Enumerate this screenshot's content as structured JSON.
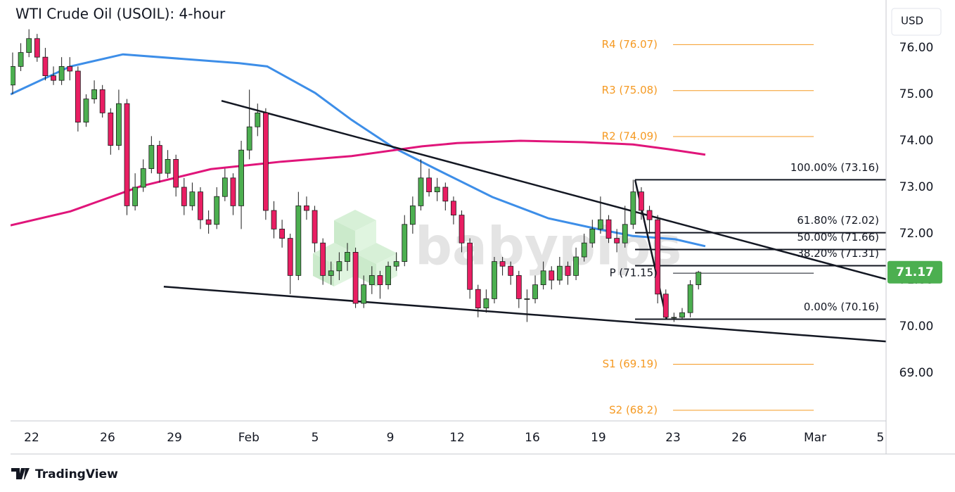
{
  "chart_data": {
    "type": "candlestick",
    "title": "WTI Crude Oil (USOIL): 4-hour",
    "currency": "USD",
    "watermark": "babypips",
    "brand": "TradingView",
    "xlim": [
      -1.11,
      45.0
    ],
    "ylim": [
      67.97,
      77.03
    ],
    "xticks": [
      {
        "value": 0,
        "label": "22"
      },
      {
        "value": 4,
        "label": "26"
      },
      {
        "value": 7.52,
        "label": "29"
      },
      {
        "value": 11.44,
        "label": "Feb"
      },
      {
        "value": 14.93,
        "label": "5"
      },
      {
        "value": 18.89,
        "label": "9"
      },
      {
        "value": 22.41,
        "label": "12"
      },
      {
        "value": 26.37,
        "label": "16"
      },
      {
        "value": 29.85,
        "label": "19"
      },
      {
        "value": 33.78,
        "label": "23"
      },
      {
        "value": 37.26,
        "label": "26"
      },
      {
        "value": 41.26,
        "label": "Mar"
      },
      {
        "value": 44.7,
        "label": "5"
      }
    ],
    "yticks": [
      {
        "value": 69,
        "label": "69.00"
      },
      {
        "value": 70,
        "label": "70.00"
      },
      {
        "value": 71,
        "label": "71.00"
      },
      {
        "value": 72,
        "label": "72.00"
      },
      {
        "value": 73,
        "label": "73.00"
      },
      {
        "value": 74,
        "label": "74.00"
      },
      {
        "value": 75,
        "label": "75.00"
      },
      {
        "value": 76,
        "label": "76.00"
      }
    ],
    "up_color": "#4caf50",
    "down_color": "#e91e63",
    "x": [
      -1,
      -0.57,
      -0.14,
      0.29,
      0.72,
      1.15,
      1.58,
      2.01,
      2.44,
      2.87,
      3.3,
      3.73,
      4.16,
      4.59,
      5.02,
      5.45,
      5.88,
      6.31,
      6.74,
      7.17,
      7.6,
      8.03,
      8.46,
      8.89,
      9.32,
      9.75,
      10.18,
      10.61,
      11.04,
      11.47,
      11.9,
      12.33,
      12.76,
      13.19,
      13.62,
      14.05,
      14.48,
      14.91,
      15.34,
      15.77,
      16.2,
      16.63,
      17.06,
      17.49,
      17.92,
      18.35,
      18.78,
      19.21,
      19.64,
      20.07,
      20.5,
      20.93,
      21.36,
      21.79,
      22.22,
      22.65,
      23.08,
      23.51,
      23.94,
      24.37,
      24.8,
      25.23,
      25.66,
      26.09,
      26.52,
      26.95,
      27.38,
      27.81,
      28.24,
      28.67,
      29.1,
      29.53,
      29.96,
      30.39,
      30.82,
      31.25,
      31.68,
      32.11,
      32.54,
      32.97,
      33.4,
      33.83,
      34.26,
      34.69,
      35.12
    ],
    "open": [
      75.2,
      75.6,
      75.9,
      76.2,
      75.8,
      75.4,
      75.3,
      75.6,
      75.5,
      74.4,
      74.9,
      75.1,
      74.6,
      73.9,
      74.8,
      72.6,
      73.0,
      73.4,
      73.9,
      73.3,
      73.6,
      73.0,
      72.6,
      72.9,
      72.3,
      72.2,
      72.8,
      73.2,
      72.6,
      73.8,
      74.3,
      74.6,
      72.5,
      72.1,
      71.9,
      71.1,
      72.6,
      72.5,
      71.8,
      71.1,
      71.2,
      71.4,
      71.6,
      70.5,
      70.9,
      71.1,
      70.9,
      71.3,
      71.4,
      72.2,
      72.6,
      73.2,
      72.9,
      73.0,
      72.7,
      72.4,
      71.8,
      70.8,
      70.4,
      70.6,
      71.4,
      71.3,
      71.1,
      70.6,
      70.6,
      70.9,
      71.2,
      71.0,
      71.3,
      71.1,
      71.5,
      71.8,
      72.1,
      72.3,
      71.9,
      71.8,
      72.2,
      72.9,
      72.5,
      72.3,
      70.7,
      70.2,
      70.2,
      70.3,
      70.9
    ],
    "high": [
      75.9,
      76.1,
      76.4,
      76.3,
      76.0,
      75.6,
      75.8,
      75.8,
      75.6,
      75.0,
      75.3,
      75.2,
      74.7,
      75.1,
      74.9,
      73.3,
      73.6,
      74.1,
      74.0,
      73.8,
      73.7,
      73.2,
      73.1,
      73.0,
      72.5,
      73.0,
      73.4,
      73.3,
      74.0,
      75.1,
      74.8,
      74.7,
      72.7,
      72.3,
      72.0,
      72.9,
      72.8,
      72.6,
      71.9,
      71.4,
      71.6,
      71.8,
      71.7,
      71.1,
      71.3,
      71.2,
      71.4,
      71.6,
      72.4,
      72.8,
      73.6,
      73.4,
      73.2,
      73.1,
      72.8,
      72.5,
      71.9,
      70.9,
      70.8,
      71.5,
      71.5,
      71.4,
      71.2,
      70.8,
      71.1,
      71.4,
      71.3,
      71.5,
      71.4,
      71.7,
      72.0,
      72.3,
      72.8,
      72.4,
      72.1,
      72.6,
      73.16,
      73.0,
      72.6,
      72.4,
      70.8,
      70.3,
      70.4,
      71.0,
      71.2
    ],
    "low": [
      75.0,
      75.5,
      75.8,
      75.7,
      75.3,
      75.2,
      75.2,
      75.3,
      74.2,
      74.3,
      74.8,
      74.5,
      73.7,
      73.8,
      72.4,
      72.5,
      72.9,
      73.3,
      73.1,
      73.2,
      72.8,
      72.4,
      72.5,
      72.1,
      72.0,
      72.1,
      72.7,
      72.4,
      72.1,
      73.6,
      74.1,
      72.3,
      71.9,
      71.7,
      70.7,
      71.0,
      72.3,
      71.6,
      70.9,
      70.9,
      71.0,
      71.2,
      70.4,
      70.4,
      70.7,
      70.6,
      70.8,
      71.2,
      71.3,
      72.0,
      72.5,
      72.8,
      72.7,
      72.5,
      72.2,
      71.6,
      70.6,
      70.2,
      70.3,
      70.5,
      71.1,
      70.9,
      70.4,
      70.1,
      70.5,
      70.8,
      70.8,
      70.9,
      70.9,
      71.0,
      71.4,
      71.7,
      72.0,
      71.8,
      71.6,
      71.7,
      72.1,
      72.3,
      72.0,
      70.5,
      70.16,
      70.1,
      70.16,
      70.2,
      70.8
    ],
    "close": [
      75.6,
      75.9,
      76.2,
      75.8,
      75.4,
      75.3,
      75.6,
      75.5,
      74.4,
      74.9,
      75.1,
      74.6,
      73.9,
      74.8,
      72.6,
      73.0,
      73.4,
      73.9,
      73.3,
      73.6,
      73.0,
      72.6,
      72.9,
      72.3,
      72.2,
      72.8,
      73.2,
      72.6,
      73.8,
      74.3,
      74.6,
      72.5,
      72.1,
      71.9,
      71.1,
      72.6,
      72.5,
      71.8,
      71.1,
      71.2,
      71.4,
      71.6,
      70.5,
      70.9,
      71.1,
      70.9,
      71.3,
      71.4,
      72.2,
      72.6,
      73.2,
      72.9,
      73.0,
      72.7,
      72.4,
      71.8,
      70.8,
      70.4,
      70.6,
      71.4,
      71.3,
      71.1,
      70.6,
      70.6,
      70.9,
      71.2,
      71.0,
      71.3,
      71.1,
      71.5,
      71.8,
      72.1,
      72.3,
      71.9,
      71.8,
      72.2,
      72.9,
      72.5,
      72.3,
      70.7,
      70.2,
      70.2,
      70.3,
      70.9,
      71.17
    ],
    "last_price": {
      "value": 71.17,
      "label": "71.17",
      "color": "#4caf50"
    },
    "moving_averages": [
      {
        "color": "#3d8ee8",
        "x": [
          -1.11,
          2.04,
          4.81,
          10.93,
          12.41,
          14.93,
          16.85,
          19.07,
          21.3,
          24.26,
          27.22,
          29.81,
          31.67,
          33.89,
          35.48
        ],
        "values": [
          75.0,
          75.6,
          75.86,
          75.67,
          75.6,
          75.03,
          74.45,
          73.85,
          73.39,
          72.79,
          72.33,
          72.1,
          71.95,
          71.88,
          71.73
        ]
      },
      {
        "color": "#e0157a",
        "x": [
          -1.11,
          2.04,
          5.74,
          9.44,
          13.15,
          16.85,
          20.56,
          22.41,
          25.74,
          29.07,
          31.67,
          33.52,
          35.48
        ],
        "values": [
          72.18,
          72.48,
          73.02,
          73.39,
          73.55,
          73.67,
          73.88,
          73.95,
          74.0,
          73.97,
          73.92,
          73.82,
          73.7
        ]
      }
    ],
    "trendlines": [
      {
        "x": [
          10.0,
          45.0
        ],
        "values": [
          74.86,
          71.02
        ]
      },
      {
        "x": [
          6.96,
          45.0
        ],
        "values": [
          70.86,
          69.68
        ]
      },
      {
        "x": [
          31.78,
          33.44
        ],
        "values": [
          73.16,
          70.16
        ]
      }
    ],
    "fibonacci": {
      "x": [
        31.78,
        45.0
      ],
      "levels": [
        {
          "value": 73.16,
          "label": "100.00% (73.16)"
        },
        {
          "value": 72.02,
          "label": "61.80% (72.02)"
        },
        {
          "value": 71.66,
          "label": "50.00% (71.66)"
        },
        {
          "value": 71.31,
          "label": "38.20% (71.31)"
        },
        {
          "value": 70.16,
          "label": "0.00% (70.16)"
        }
      ]
    },
    "pivots": {
      "x": [
        33.78,
        41.19
      ],
      "levels": [
        {
          "value": 76.07,
          "label": "R4 (76.07)",
          "color": "#f59a23"
        },
        {
          "value": 75.08,
          "label": "R3 (75.08)",
          "color": "#f59a23"
        },
        {
          "value": 74.09,
          "label": "R2 (74.09)",
          "color": "#f59a23"
        },
        {
          "value": 71.15,
          "label": "P (71.15)",
          "color": "#131722"
        },
        {
          "value": 69.19,
          "label": "S1 (69.19)",
          "color": "#f59a23"
        },
        {
          "value": 68.2,
          "label": "S2 (68.2)",
          "color": "#f59a23"
        }
      ]
    }
  }
}
